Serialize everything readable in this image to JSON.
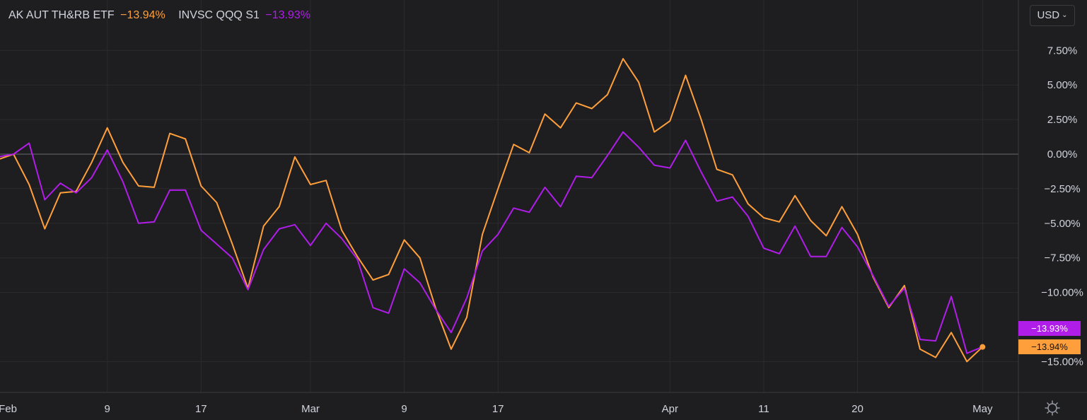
{
  "header": {
    "series1_name": "AK AUT TH&RB ETF",
    "series1_value": "−13.94%",
    "series2_name": "INVSC QQQ S1",
    "series2_value": "−13.93%",
    "currency_label": "USD"
  },
  "colors": {
    "series1": "#ff9f3b",
    "series2": "#b01de8",
    "background": "#1e1e21",
    "grid": "#2b2b2f",
    "axis_text": "#d1d4dc"
  },
  "icons": {
    "currency_dropdown": "chevron-down-icon",
    "settings": "gear-icon"
  },
  "price_tags": [
    "−13.93%",
    "−13.94%"
  ],
  "chart_data": {
    "type": "line",
    "y_unit": "%",
    "ylim": [
      -17.2,
      10.0
    ],
    "y_ticks": [
      7.5,
      5.0,
      2.5,
      0.0,
      -2.5,
      -5.0,
      -7.5,
      -10.0,
      -15.0
    ],
    "y_tick_labels": [
      "7.50%",
      "5.00%",
      "2.50%",
      "0.00%",
      "−2.50%",
      "−5.00%",
      "−7.50%",
      "−10.00%",
      "−15.00%"
    ],
    "x_tick_labels": [
      "Feb",
      "9",
      "17",
      "Mar",
      "9",
      "17",
      "Apr",
      "11",
      "20",
      "May"
    ],
    "x_tick_index": [
      0,
      7,
      13,
      20,
      26,
      32,
      43,
      49,
      55,
      63
    ],
    "zero_line": true,
    "grid": true,
    "series": [
      {
        "name": "AK AUT TH&RB ETF",
        "values": [
          -0.4,
          0.0,
          -2.2,
          -5.4,
          -2.8,
          -2.7,
          -0.6,
          1.9,
          -0.6,
          -2.3,
          -2.4,
          1.5,
          1.1,
          -2.3,
          -3.5,
          -6.5,
          -9.7,
          -5.2,
          -3.8,
          -0.2,
          -2.2,
          -1.9,
          -5.5,
          -7.4,
          -9.1,
          -8.7,
          -6.2,
          -7.5,
          -11.1,
          -14.1,
          -11.8,
          -5.8,
          -2.5,
          0.7,
          0.1,
          2.9,
          1.9,
          3.7,
          3.3,
          4.3,
          6.9,
          5.2,
          1.6,
          2.4,
          5.7,
          2.5,
          -1.1,
          -1.5,
          -3.6,
          -4.6,
          -4.9,
          -3.0,
          -4.8,
          -5.9,
          -3.8,
          -5.8,
          -8.9,
          -11.1,
          -9.5,
          -14.1,
          -14.7,
          -12.9,
          -15.0,
          -13.94
        ],
        "last_label": "−13.94%"
      },
      {
        "name": "INVSC QQQ S1",
        "values": [
          -0.2,
          0.0,
          0.8,
          -3.3,
          -2.1,
          -2.8,
          -1.7,
          0.3,
          -2.0,
          -5.0,
          -4.9,
          -2.6,
          -2.6,
          -5.5,
          -6.5,
          -7.5,
          -9.8,
          -6.9,
          -5.4,
          -5.1,
          -6.6,
          -5.0,
          -6.1,
          -7.6,
          -11.1,
          -11.5,
          -8.3,
          -9.3,
          -11.2,
          -12.9,
          -10.4,
          -7.0,
          -5.8,
          -3.9,
          -4.2,
          -2.4,
          -3.8,
          -1.6,
          -1.7,
          -0.1,
          1.6,
          0.5,
          -0.8,
          -1.0,
          1.0,
          -1.3,
          -3.4,
          -3.1,
          -4.5,
          -6.8,
          -7.2,
          -5.2,
          -7.4,
          -7.4,
          -5.3,
          -6.7,
          -8.8,
          -11.0,
          -9.7,
          -13.4,
          -13.5,
          -10.3,
          -14.4,
          -13.93
        ],
        "last_label": "−13.93%"
      }
    ]
  }
}
